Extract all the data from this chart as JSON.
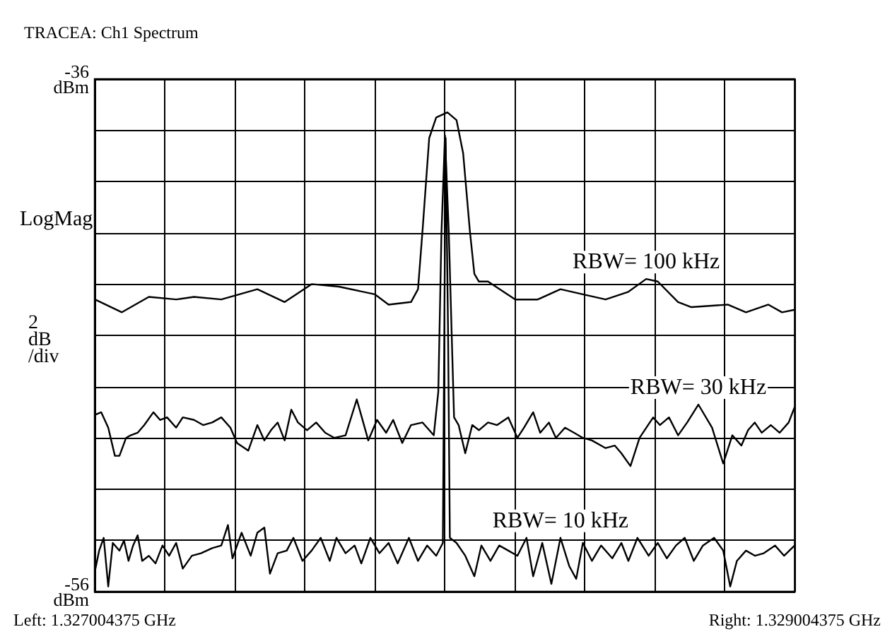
{
  "chart_data": {
    "type": "line",
    "title": "TRACEA: Ch1 Spectrum",
    "ylabel": "LogMag",
    "annotations": [
      "2 dB /div"
    ],
    "xlim": [
      1.327004375,
      1.329004375
    ],
    "xticks": [
      {
        "value": 1.327004375,
        "label": "Left: 1.327004375 GHz"
      },
      {
        "value": 1.327204375,
        "label": null
      },
      {
        "value": 1.327404375,
        "label": null
      },
      {
        "value": 1.327604375,
        "label": null
      },
      {
        "value": 1.327804375,
        "label": null
      },
      {
        "value": 1.328004375,
        "label": null
      },
      {
        "value": 1.328204375,
        "label": null
      },
      {
        "value": 1.328404375,
        "label": null
      },
      {
        "value": 1.328604375,
        "label": null
      },
      {
        "value": 1.328804375,
        "label": null
      },
      {
        "value": 1.329004375,
        "label": "Right: 1.329004375 GHz"
      }
    ],
    "ylim": [
      -56,
      -36
    ],
    "yticks": [
      {
        "value": -36,
        "label": "-36 dBm"
      },
      {
        "value": -38,
        "label": null
      },
      {
        "value": -40,
        "label": null
      },
      {
        "value": -42,
        "label": null
      },
      {
        "value": -44,
        "label": null
      },
      {
        "value": -46,
        "label": null
      },
      {
        "value": -48,
        "label": null
      },
      {
        "value": -50,
        "label": null
      },
      {
        "value": -52,
        "label": null
      },
      {
        "value": -54,
        "label": null
      },
      {
        "value": -56,
        "label": "-56 dBm"
      }
    ],
    "grid": true,
    "marker": "none",
    "line_style": "solid",
    "legend": false,
    "series": [
      {
        "name": "RBW= 100 kHz",
        "color": "#000000",
        "x": [
          1.327005,
          1.327082,
          1.327159,
          1.327237,
          1.327288,
          1.327366,
          1.327469,
          1.327547,
          1.327624,
          1.327702,
          1.327805,
          1.327844,
          1.327908,
          1.327928,
          1.327941,
          1.32796,
          1.32798,
          1.328012,
          1.328038,
          1.328057,
          1.328076,
          1.328089,
          1.328102,
          1.328128,
          1.328206,
          1.32827,
          1.328335,
          1.328399,
          1.328464,
          1.328529,
          1.32858,
          1.328613,
          1.328671,
          1.328709,
          1.328813,
          1.328865,
          1.328929,
          1.328968,
          1.329004
        ],
        "values": [
          -44.6,
          -45.1,
          -44.5,
          -44.6,
          -44.5,
          -44.6,
          -44.2,
          -44.7,
          -44.0,
          -44.1,
          -44.4,
          -44.8,
          -44.7,
          -44.2,
          -41.9,
          -38.3,
          -37.5,
          -37.3,
          -37.6,
          -38.9,
          -41.9,
          -43.6,
          -43.9,
          -43.9,
          -44.6,
          -44.6,
          -44.2,
          -44.4,
          -44.6,
          -44.3,
          -43.8,
          -43.9,
          -44.7,
          -44.9,
          -44.8,
          -45.1,
          -44.8,
          -45.1,
          -45.0
        ]
      },
      {
        "name": "RBW= 30 kHz",
        "color": "#000000",
        "x": [
          1.327005,
          1.327023,
          1.327043,
          1.327062,
          1.327075,
          1.327094,
          1.327107,
          1.327127,
          1.327146,
          1.327172,
          1.327191,
          1.327211,
          1.327237,
          1.327256,
          1.327288,
          1.327314,
          1.32734,
          1.327366,
          1.327392,
          1.327411,
          1.327443,
          1.327469,
          1.327489,
          1.327508,
          1.327527,
          1.327547,
          1.327566,
          1.327585,
          1.327611,
          1.327637,
          1.327663,
          1.327689,
          1.327721,
          1.327753,
          1.327786,
          1.327811,
          1.327837,
          1.327857,
          1.327883,
          1.327908,
          1.327941,
          1.327973,
          1.327986,
          1.327995,
          1.328005,
          1.328016,
          1.328031,
          1.328044,
          1.328063,
          1.328083,
          1.328102,
          1.328128,
          1.328154,
          1.328186,
          1.328212,
          1.328231,
          1.328257,
          1.328277,
          1.328302,
          1.328322,
          1.328348,
          1.328374,
          1.328399,
          1.328425,
          1.328464,
          1.32849,
          1.328509,
          1.328535,
          1.328561,
          1.3286,
          1.328619,
          1.328645,
          1.328671,
          1.328697,
          1.328729,
          1.328768,
          1.3288,
          1.328826,
          1.328852,
          1.328871,
          1.32889,
          1.32891,
          1.328936,
          1.328961,
          1.328987,
          1.329004
        ],
        "values": [
          -49.1,
          -49.0,
          -49.6,
          -50.7,
          -50.7,
          -50.0,
          -49.9,
          -49.8,
          -49.5,
          -49.0,
          -49.3,
          -49.2,
          -49.6,
          -49.2,
          -49.3,
          -49.5,
          -49.4,
          -49.2,
          -49.6,
          -50.2,
          -50.5,
          -49.5,
          -50.1,
          -49.7,
          -49.4,
          -50.1,
          -48.9,
          -49.4,
          -49.7,
          -49.4,
          -49.8,
          -50.0,
          -49.9,
          -48.5,
          -50.1,
          -49.3,
          -49.8,
          -49.3,
          -50.2,
          -49.5,
          -49.4,
          -49.9,
          -48.2,
          -42.0,
          -38.2,
          -42.0,
          -49.2,
          -49.5,
          -50.6,
          -49.5,
          -49.7,
          -49.4,
          -49.5,
          -49.2,
          -50.0,
          -49.6,
          -49.0,
          -49.8,
          -49.4,
          -50.0,
          -49.6,
          -49.8,
          -50.0,
          -50.1,
          -50.4,
          -50.3,
          -50.6,
          -51.1,
          -50.0,
          -49.2,
          -49.5,
          -49.2,
          -49.9,
          -49.4,
          -48.7,
          -49.6,
          -51.0,
          -49.9,
          -50.3,
          -49.7,
          -49.4,
          -49.8,
          -49.5,
          -49.8,
          -49.4,
          -48.8
        ]
      },
      {
        "name": "RBW= 10 kHz",
        "color": "#000000",
        "x": [
          1.327005,
          1.327017,
          1.32703,
          1.327043,
          1.327056,
          1.327075,
          1.327088,
          1.327101,
          1.327114,
          1.327127,
          1.32714,
          1.327159,
          1.327178,
          1.327198,
          1.327217,
          1.327237,
          1.327256,
          1.327282,
          1.327308,
          1.32734,
          1.327366,
          1.327385,
          1.327398,
          1.327424,
          1.32745,
          1.327469,
          1.327489,
          1.327505,
          1.327527,
          1.327553,
          1.327572,
          1.327598,
          1.327624,
          1.32765,
          1.327676,
          1.327695,
          1.327721,
          1.327747,
          1.327766,
          1.327792,
          1.327818,
          1.327844,
          1.32787,
          1.327902,
          1.327928,
          1.327954,
          1.32798,
          1.327999,
          1.328001,
          1.328007,
          1.328014,
          1.328019,
          1.328038,
          1.328063,
          1.328089,
          1.328109,
          1.328135,
          1.32816,
          1.328186,
          1.328212,
          1.328238,
          1.328257,
          1.328283,
          1.328309,
          1.328335,
          1.32836,
          1.32838,
          1.328399,
          1.328425,
          1.328451,
          1.328483,
          1.328509,
          1.328529,
          1.328555,
          1.328587,
          1.328613,
          1.328639,
          1.328665,
          1.32869,
          1.328716,
          1.328742,
          1.328774,
          1.3288,
          1.32882,
          1.328839,
          1.328865,
          1.328891,
          1.328916,
          1.328948,
          1.328974,
          1.329004
        ],
        "values": [
          -55.2,
          -54.4,
          -53.9,
          -55.8,
          -54.1,
          -54.4,
          -54.0,
          -54.8,
          -54.2,
          -53.8,
          -54.8,
          -54.6,
          -54.9,
          -54.2,
          -54.6,
          -54.1,
          -55.1,
          -54.6,
          -54.5,
          -54.3,
          -54.2,
          -53.4,
          -54.7,
          -53.7,
          -54.6,
          -53.7,
          -53.5,
          -55.3,
          -54.5,
          -54.4,
          -53.9,
          -54.8,
          -54.4,
          -53.9,
          -54.8,
          -53.9,
          -54.5,
          -54.2,
          -54.9,
          -53.9,
          -54.5,
          -54.1,
          -54.9,
          -53.9,
          -54.8,
          -54.2,
          -54.6,
          -54.1,
          -50.0,
          -38.3,
          -46.0,
          -53.9,
          -54.1,
          -54.6,
          -55.4,
          -54.2,
          -54.8,
          -54.2,
          -54.4,
          -54.6,
          -53.9,
          -55.4,
          -54.1,
          -55.7,
          -53.9,
          -55.0,
          -55.5,
          -54.1,
          -54.8,
          -54.2,
          -54.7,
          -54.1,
          -54.8,
          -53.9,
          -54.6,
          -54.1,
          -54.7,
          -54.2,
          -53.9,
          -54.8,
          -54.2,
          -53.9,
          -54.4,
          -55.8,
          -54.8,
          -54.4,
          -54.6,
          -54.5,
          -54.2,
          -54.6,
          -54.2
        ]
      }
    ]
  }
}
